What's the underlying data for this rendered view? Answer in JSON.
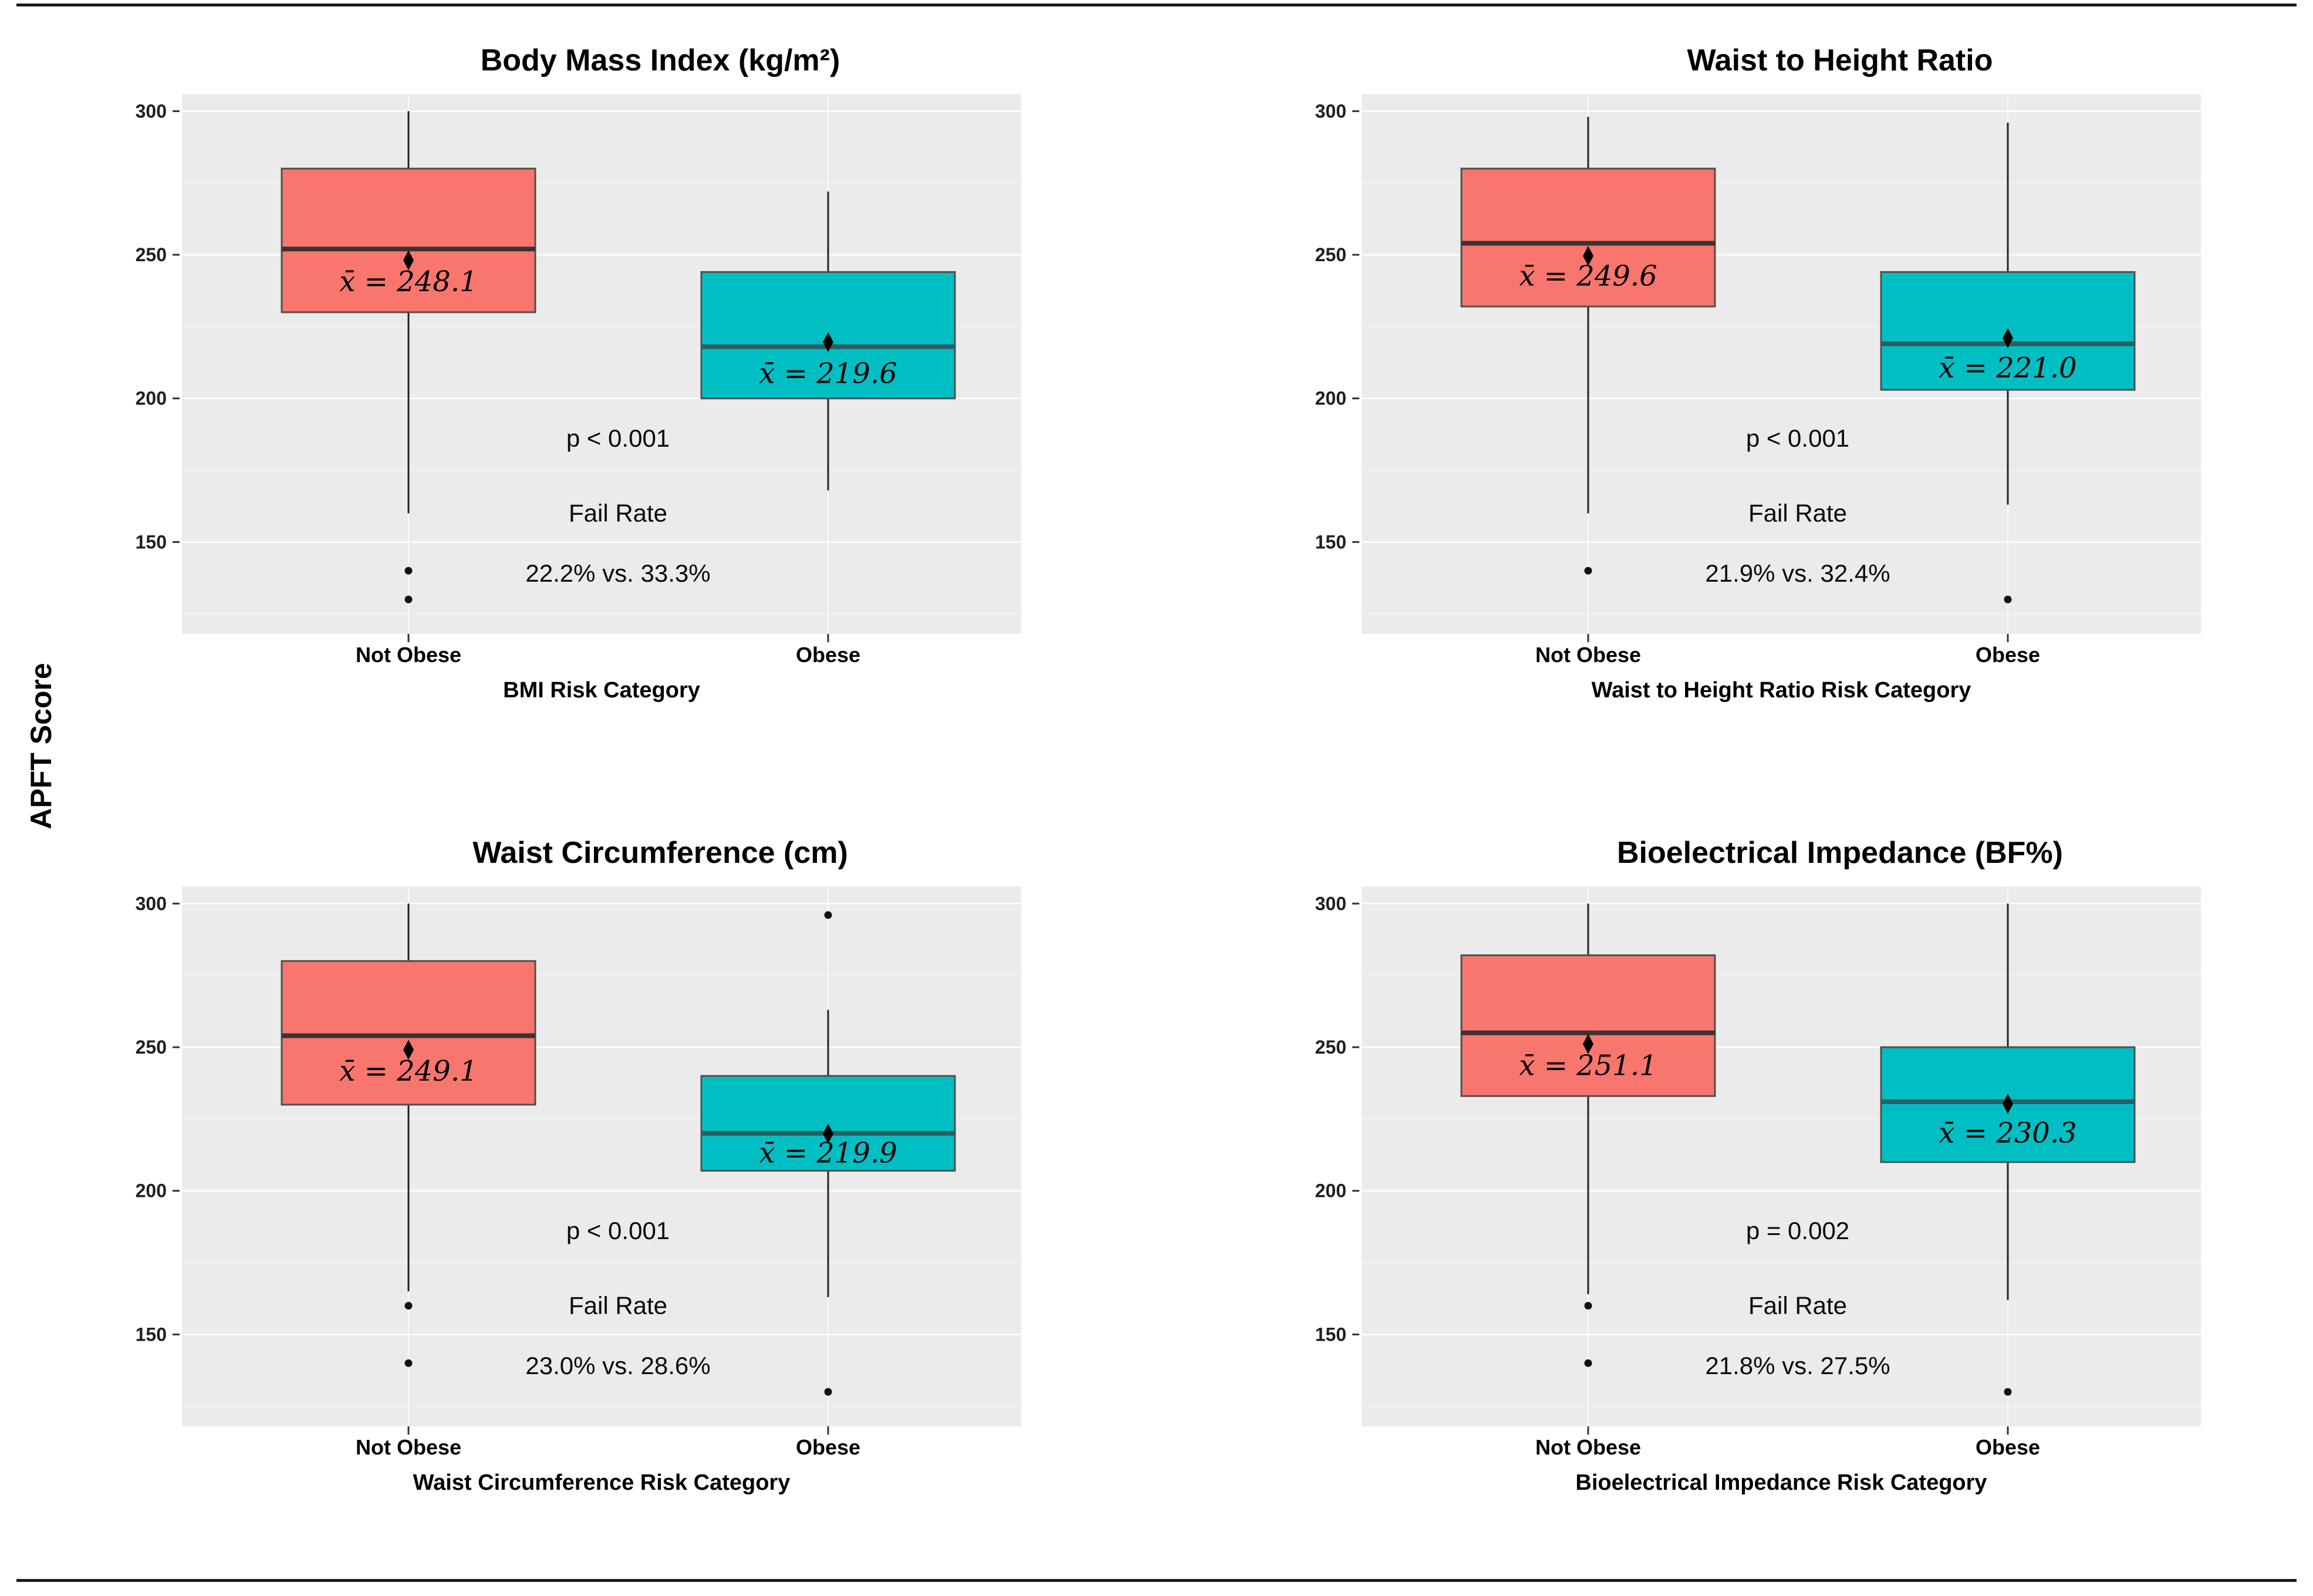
{
  "page": {
    "y_axis_label": "APFT Score",
    "background": "#FFFFFF",
    "rule_color": "#1A1A1A"
  },
  "colors": {
    "panel_background": "#EBEBEB",
    "gridline_major": "#FFFFFF",
    "gridline_minor": "#FFFFFF",
    "whisker": "#222222",
    "box_border": "#4F4F4F",
    "outlier": "#111111",
    "mean_marker": "#000000",
    "tick_label": "#1F1F1F",
    "annotation_text": "#0A0A0A",
    "not_obese_fill": "#F8766D",
    "obese_fill": "#00BFC4"
  },
  "chart_data": [
    {
      "type": "boxplot",
      "title": "Body Mass Index (kg/m²)",
      "xlabel": "BMI Risk Category",
      "ylabel": "APFT Score",
      "ylim": [
        118,
        306
      ],
      "yticks": [
        150,
        200,
        250,
        300
      ],
      "yticks_minor": [
        125,
        175,
        225,
        275
      ],
      "categories": [
        "Not Obese",
        "Obese"
      ],
      "annotations": {
        "p_value": "p < 0.001",
        "fail_rate_title": "Fail Rate",
        "fail_rate_values": "22.2% vs. 33.3%"
      },
      "series": [
        {
          "category": "Not Obese",
          "fill": "#F8766D",
          "median_color": "#3C3231",
          "whisker_low": 160,
          "q1": 230,
          "median": 252,
          "q3": 280,
          "whisker_high": 300,
          "mean": 248.1,
          "mean_label": "x̄ = 248.1",
          "outliers": [
            140,
            130
          ]
        },
        {
          "category": "Obese",
          "fill": "#00BFC4",
          "median_color": "#2B5F61",
          "whisker_low": 168,
          "q1": 200,
          "median": 218,
          "q3": 244,
          "whisker_high": 272,
          "mean": 219.6,
          "mean_label": "x̄ = 219.6",
          "outliers": []
        }
      ]
    },
    {
      "type": "boxplot",
      "title": "Waist to Height Ratio",
      "xlabel": "Waist to Height Ratio Risk Category",
      "ylabel": "APFT Score",
      "ylim": [
        118,
        306
      ],
      "yticks": [
        150,
        200,
        250,
        300
      ],
      "yticks_minor": [
        125,
        175,
        225,
        275
      ],
      "categories": [
        "Not Obese",
        "Obese"
      ],
      "annotations": {
        "p_value": "p < 0.001",
        "fail_rate_title": "Fail Rate",
        "fail_rate_values": "21.9% vs. 32.4%"
      },
      "series": [
        {
          "category": "Not Obese",
          "fill": "#F8766D",
          "median_color": "#3C3231",
          "whisker_low": 160,
          "q1": 232,
          "median": 254,
          "q3": 280,
          "whisker_high": 298,
          "mean": 249.6,
          "mean_label": "x̄ = 249.6",
          "outliers": [
            140
          ]
        },
        {
          "category": "Obese",
          "fill": "#00BFC4",
          "median_color": "#2B5F61",
          "whisker_low": 163,
          "q1": 203,
          "median": 219,
          "q3": 244,
          "whisker_high": 296,
          "mean": 221.0,
          "mean_label": "x̄ = 221.0",
          "outliers": [
            130
          ]
        }
      ]
    },
    {
      "type": "boxplot",
      "title": "Waist Circumference (cm)",
      "xlabel": "Waist Circumference Risk Category",
      "ylabel": "APFT Score",
      "ylim": [
        118,
        306
      ],
      "yticks": [
        150,
        200,
        250,
        300
      ],
      "yticks_minor": [
        125,
        175,
        225,
        275
      ],
      "categories": [
        "Not Obese",
        "Obese"
      ],
      "annotations": {
        "p_value": "p < 0.001",
        "fail_rate_title": "Fail Rate",
        "fail_rate_values": "23.0% vs. 28.6%"
      },
      "series": [
        {
          "category": "Not Obese",
          "fill": "#F8766D",
          "median_color": "#3C3231",
          "whisker_low": 165,
          "q1": 230,
          "median": 254,
          "q3": 280,
          "whisker_high": 300,
          "mean": 249.1,
          "mean_label": "x̄ = 249.1",
          "outliers": [
            160,
            140
          ]
        },
        {
          "category": "Obese",
          "fill": "#00BFC4",
          "median_color": "#2B5F61",
          "whisker_low": 163,
          "q1": 207,
          "median": 220,
          "q3": 240,
          "whisker_high": 263,
          "mean": 219.9,
          "mean_label": "x̄ = 219.9",
          "outliers": [
            296,
            130
          ]
        }
      ]
    },
    {
      "type": "boxplot",
      "title": "Bioelectrical Impedance (BF%)",
      "xlabel": "Bioelectrical Impedance Risk Category",
      "ylabel": "APFT Score",
      "ylim": [
        118,
        306
      ],
      "yticks": [
        150,
        200,
        250,
        300
      ],
      "yticks_minor": [
        125,
        175,
        225,
        275
      ],
      "categories": [
        "Not Obese",
        "Obese"
      ],
      "annotations": {
        "p_value": "p = 0.002",
        "fail_rate_title": "Fail Rate",
        "fail_rate_values": "21.8% vs. 27.5%"
      },
      "series": [
        {
          "category": "Not Obese",
          "fill": "#F8766D",
          "median_color": "#3C3231",
          "whisker_low": 164,
          "q1": 233,
          "median": 255,
          "q3": 282,
          "whisker_high": 300,
          "mean": 251.1,
          "mean_label": "x̄ = 251.1",
          "outliers": [
            160,
            140
          ]
        },
        {
          "category": "Obese",
          "fill": "#00BFC4",
          "median_color": "#2B5F61",
          "whisker_low": 162,
          "q1": 210,
          "median": 231,
          "q3": 250,
          "whisker_high": 300,
          "mean": 230.3,
          "mean_label": "x̄ = 230.3",
          "outliers": [
            130
          ]
        }
      ]
    }
  ]
}
